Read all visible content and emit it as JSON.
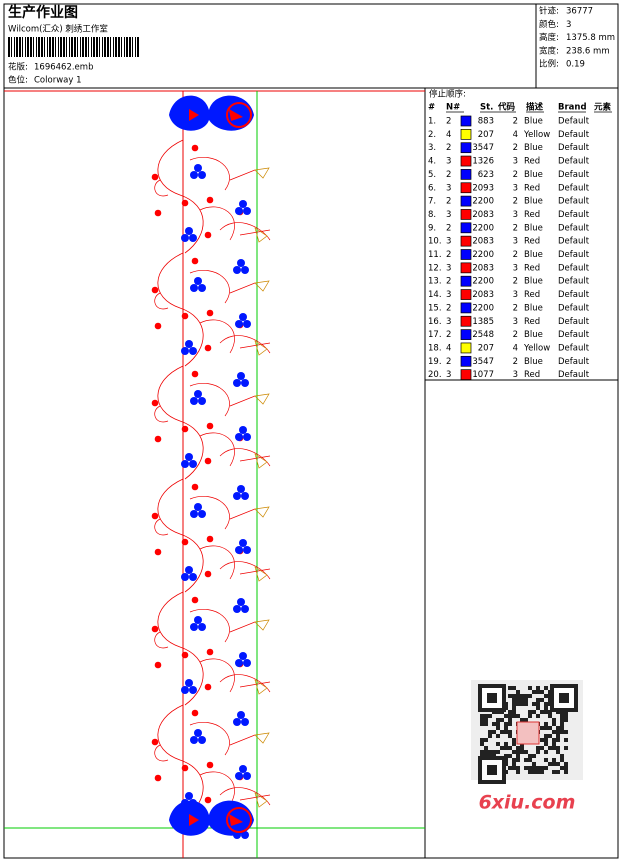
{
  "header": {
    "title": "生产作业图",
    "studio": "Wilcom(汇众) 刺绣工作室",
    "design_label": "花版:",
    "design": "1696462.emb",
    "colorway_label": "色位:",
    "colorway": "Colorway 1"
  },
  "info": [
    {
      "label": "针迹:",
      "value": "36777"
    },
    {
      "label": "颜色:",
      "value": "3"
    },
    {
      "label": "高度:",
      "value": "1375.8 mm"
    },
    {
      "label": "宽度:",
      "value": "238.6 mm"
    },
    {
      "label": "比例:",
      "value": "0.19"
    }
  ],
  "table": {
    "title": "停止顺序:",
    "columns": [
      "#",
      "N#",
      "St.",
      "代码",
      "描述",
      "Brand",
      "元素"
    ],
    "rows": [
      {
        "index": "1.",
        "n": 2,
        "color": "#0000ff",
        "stitches": 883,
        "code": 2,
        "description": "Blue",
        "brand": "Default"
      },
      {
        "index": "2.",
        "n": 4,
        "color": "#ffff00",
        "stitches": 207,
        "code": 4,
        "description": "Yellow",
        "brand": "Default"
      },
      {
        "index": "3.",
        "n": 2,
        "color": "#0000ff",
        "stitches": 3547,
        "code": 2,
        "description": "Blue",
        "brand": "Default"
      },
      {
        "index": "4.",
        "n": 3,
        "color": "#ff0000",
        "stitches": 1326,
        "code": 3,
        "description": "Red",
        "brand": "Default"
      },
      {
        "index": "5.",
        "n": 2,
        "color": "#0000ff",
        "stitches": 623,
        "code": 2,
        "description": "Blue",
        "brand": "Default"
      },
      {
        "index": "6.",
        "n": 3,
        "color": "#ff0000",
        "stitches": 2093,
        "code": 3,
        "description": "Red",
        "brand": "Default"
      },
      {
        "index": "7.",
        "n": 2,
        "color": "#0000ff",
        "stitches": 2200,
        "code": 2,
        "description": "Blue",
        "brand": "Default"
      },
      {
        "index": "8.",
        "n": 3,
        "color": "#ff0000",
        "stitches": 2083,
        "code": 3,
        "description": "Red",
        "brand": "Default"
      },
      {
        "index": "9.",
        "n": 2,
        "color": "#0000ff",
        "stitches": 2200,
        "code": 2,
        "description": "Blue",
        "brand": "Default"
      },
      {
        "index": "10.",
        "n": 3,
        "color": "#ff0000",
        "stitches": 2083,
        "code": 3,
        "description": "Red",
        "brand": "Default"
      },
      {
        "index": "11.",
        "n": 2,
        "color": "#0000ff",
        "stitches": 2200,
        "code": 2,
        "description": "Blue",
        "brand": "Default"
      },
      {
        "index": "12.",
        "n": 3,
        "color": "#ff0000",
        "stitches": 2083,
        "code": 3,
        "description": "Red",
        "brand": "Default"
      },
      {
        "index": "13.",
        "n": 2,
        "color": "#0000ff",
        "stitches": 2200,
        "code": 2,
        "description": "Blue",
        "brand": "Default"
      },
      {
        "index": "14.",
        "n": 3,
        "color": "#ff0000",
        "stitches": 2083,
        "code": 3,
        "description": "Red",
        "brand": "Default"
      },
      {
        "index": "15.",
        "n": 2,
        "color": "#0000ff",
        "stitches": 2200,
        "code": 2,
        "description": "Blue",
        "brand": "Default"
      },
      {
        "index": "16.",
        "n": 3,
        "color": "#ff0000",
        "stitches": 1385,
        "code": 3,
        "description": "Red",
        "brand": "Default"
      },
      {
        "index": "17.",
        "n": 2,
        "color": "#0000ff",
        "stitches": 2548,
        "code": 2,
        "description": "Blue",
        "brand": "Default"
      },
      {
        "index": "18.",
        "n": 4,
        "color": "#ffff00",
        "stitches": 207,
        "code": 4,
        "description": "Yellow",
        "brand": "Default"
      },
      {
        "index": "19.",
        "n": 2,
        "color": "#0000ff",
        "stitches": 3547,
        "code": 2,
        "description": "Blue",
        "brand": "Default"
      },
      {
        "index": "20.",
        "n": 3,
        "color": "#ff0000",
        "stitches": 1077,
        "code": 3,
        "description": "Red",
        "brand": "Default"
      }
    ]
  },
  "watermark": "6xiu.com"
}
